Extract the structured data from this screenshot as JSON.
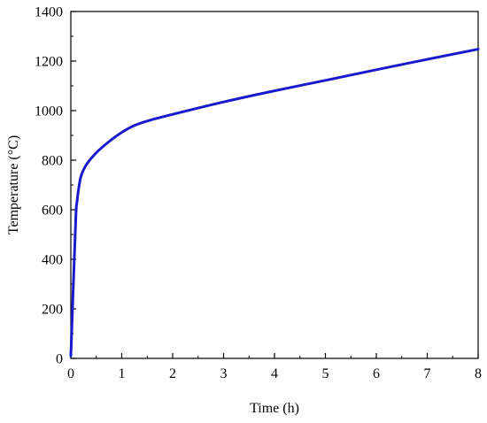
{
  "chart_data": {
    "type": "line",
    "title": "",
    "xlabel": "Time (h)",
    "ylabel": "Temperature (°C)",
    "xlim": [
      0,
      8
    ],
    "ylim": [
      0,
      1400
    ],
    "x_ticks": [
      0,
      1,
      2,
      3,
      4,
      5,
      6,
      7,
      8
    ],
    "y_ticks": [
      0,
      200,
      400,
      600,
      800,
      1000,
      1200,
      1400
    ],
    "grid": false,
    "legend": "none",
    "series": [
      {
        "color": "#1a1acc",
        "x": [
          0,
          0.05,
          0.1,
          0.12,
          0.15,
          0.2,
          0.3,
          0.5,
          0.75,
          1.0,
          1.25,
          1.5,
          2.0,
          3.0,
          4.0,
          5.0,
          6.0,
          7.0,
          8.0
        ],
        "y": [
          10,
          300,
          580,
          630,
          680,
          735,
          780,
          830,
          875,
          912,
          940,
          958,
          985,
          1035,
          1080,
          1122,
          1165,
          1207,
          1248
        ]
      }
    ]
  }
}
